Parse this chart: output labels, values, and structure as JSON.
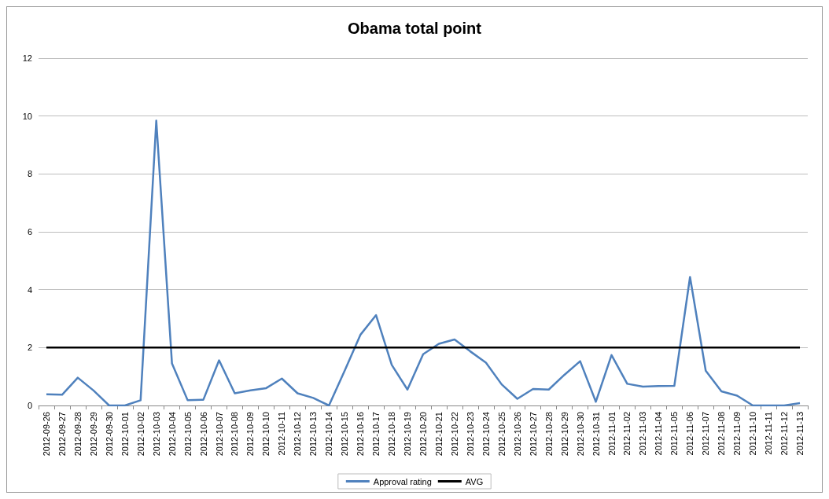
{
  "chart_data": {
    "type": "line",
    "title": "Obama total point",
    "categories": [
      "2012-09-26",
      "2012-09-27",
      "2012-09-28",
      "2012-09-29",
      "2012-09-30",
      "2012-10-01",
      "2012-10-02",
      "2012-10-03",
      "2012-10-04",
      "2012-10-05",
      "2012-10-06",
      "2012-10-07",
      "2012-10-08",
      "2012-10-09",
      "2012-10-10",
      "2012-10-11",
      "2012-10-12",
      "2012-10-13",
      "2012-10-14",
      "2012-10-15",
      "2012-10-16",
      "2012-10-17",
      "2012-10-18",
      "2012-10-19",
      "2012-10-20",
      "2012-10-21",
      "2012-10-22",
      "2012-10-23",
      "2012-10-24",
      "2012-10-25",
      "2012-10-26",
      "2012-10-27",
      "2012-10-28",
      "2012-10-29",
      "2012-10-30",
      "2012-10-31",
      "2012-11-01",
      "2012-11-02",
      "2012-11-03",
      "2012-11-04",
      "2012-11-05",
      "2012-11-06",
      "2012-11-07",
      "2012-11-08",
      "2012-11-09",
      "2012-11-10",
      "2012-11-11",
      "2012-11-12",
      "2012-11-13"
    ],
    "series": [
      {
        "name": "Approval rating",
        "color": "#4f81bd",
        "values": [
          0.39,
          0.37,
          0.96,
          0.52,
          0,
          0,
          0.18,
          9.84,
          1.45,
          0.18,
          0.2,
          1.56,
          0.42,
          0.52,
          0.6,
          0.93,
          0.42,
          0.26,
          0,
          1.2,
          2.44,
          3.12,
          1.4,
          0.55,
          1.77,
          2.13,
          2.28,
          1.87,
          1.48,
          0.73,
          0.23,
          0.57,
          0.55,
          1.06,
          1.53,
          0.13,
          1.74,
          0.75,
          0.65,
          0.67,
          0.68,
          4.44,
          1.2,
          0.49,
          0.34,
          0,
          0,
          0,
          0.08
        ]
      },
      {
        "name": "AVG",
        "color": "#000000",
        "values": [
          2,
          2,
          2,
          2,
          2,
          2,
          2,
          2,
          2,
          2,
          2,
          2,
          2,
          2,
          2,
          2,
          2,
          2,
          2,
          2,
          2,
          2,
          2,
          2,
          2,
          2,
          2,
          2,
          2,
          2,
          2,
          2,
          2,
          2,
          2,
          2,
          2,
          2,
          2,
          2,
          2,
          2,
          2,
          2,
          2,
          2,
          2,
          2,
          2
        ]
      }
    ],
    "ylim": [
      0,
      12
    ],
    "yticks": [
      0,
      2,
      4,
      6,
      8,
      10,
      12
    ],
    "grid": "y",
    "legend": "bottom",
    "marker": "none",
    "line_style": "solid"
  }
}
